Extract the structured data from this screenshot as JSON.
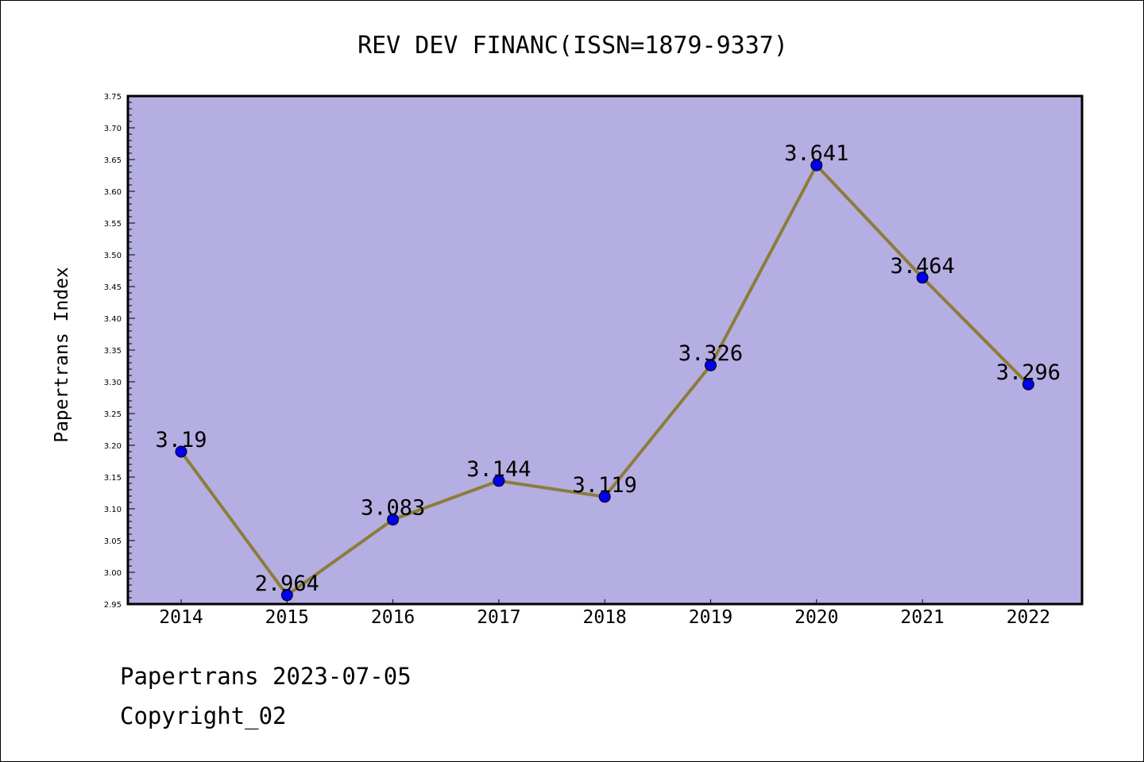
{
  "chart_data": {
    "type": "line",
    "title": "REV DEV FINANC(ISSN=1879-9337)",
    "xlabel": "",
    "ylabel": "Papertrans Index",
    "categories": [
      "2014",
      "2015",
      "2016",
      "2017",
      "2018",
      "2019",
      "2020",
      "2021",
      "2022"
    ],
    "series": [
      {
        "values": [
          3.19,
          2.964,
          3.083,
          3.144,
          3.119,
          3.326,
          3.641,
          3.464,
          3.296
        ],
        "labels": [
          "3.19",
          "2.964",
          "3.083",
          "3.144",
          "3.119",
          "3.326",
          "3.641",
          "3.464",
          "3.296"
        ]
      }
    ],
    "ylim": [
      2.95,
      3.75
    ],
    "yticks": [
      "2.95",
      "3.00",
      "3.05",
      "3.10",
      "3.15",
      "3.20",
      "3.25",
      "3.30",
      "3.35",
      "3.40",
      "3.45",
      "3.50",
      "3.55",
      "3.60",
      "3.65",
      "3.70",
      "3.75"
    ],
    "grid": false,
    "legend": "none",
    "colors": {
      "plot_background": "#b5aee2",
      "line": "#8b7d3a",
      "marker": "#0000ee"
    }
  },
  "footer": {
    "line1": "Papertrans 2023-07-05",
    "line2": "Copyright_02"
  }
}
